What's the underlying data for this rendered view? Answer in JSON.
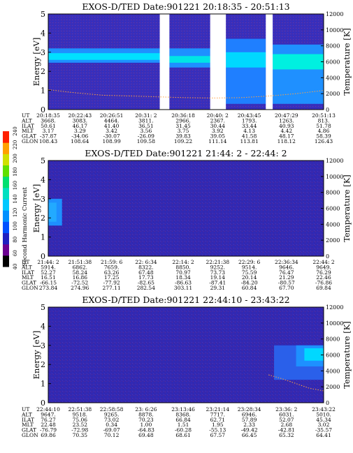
{
  "chart_data": [
    {
      "type": "heatmap",
      "title": "EXOS-D/TED   Date:901221  20:18:35 - 20:51:13",
      "ylabel": "Energy [eV]",
      "y2label": "Temperature [K]",
      "ylim": [
        0,
        5
      ],
      "yticks": [
        "0",
        "1",
        "2",
        "3",
        "4",
        "5"
      ],
      "y2lim": [
        0,
        12000
      ],
      "y2ticks": [
        "0",
        "2000",
        "4000",
        "6000",
        "8000",
        "10000",
        "12000"
      ],
      "gaps": [
        [
          0.405,
          0.44
        ],
        [
          0.588,
          0.645
        ],
        [
          0.79,
          0.815
        ]
      ],
      "bands": [
        {
          "x": [
            0.0,
            0.405
          ],
          "y": [
            2.45,
            3.2
          ],
          "color": "#1e90ff",
          "core": [
            2.6,
            2.95
          ],
          "core_color": "#00e0ff"
        },
        {
          "x": [
            0.44,
            0.588
          ],
          "y": [
            2.2,
            3.2
          ],
          "color": "#1e90ff",
          "core": [
            2.45,
            2.8
          ],
          "core_color": "#00e5e5"
        },
        {
          "x": [
            0.645,
            0.79
          ],
          "y": [
            0.3,
            3.7
          ],
          "color": "#1f7fff",
          "core": [
            2.2,
            3.0
          ],
          "core_color": "#00d8ff"
        },
        {
          "x": [
            0.815,
            1.0
          ],
          "y": [
            0.3,
            3.4
          ],
          "color": "#1f90ff",
          "core": [
            2.1,
            2.9
          ],
          "core_color": "#00f0e0"
        }
      ],
      "temperature_line": [
        [
          0.0,
          2500
        ],
        [
          0.1,
          2100
        ],
        [
          0.2,
          1800
        ],
        [
          0.3,
          1700
        ],
        [
          0.4,
          1600
        ],
        [
          0.5,
          1500
        ],
        [
          0.6,
          1450
        ],
        [
          0.7,
          1500
        ],
        [
          0.8,
          1700
        ],
        [
          0.9,
          2000
        ],
        [
          1.0,
          2400
        ]
      ],
      "orbit_labels": [
        "UT",
        "ALT",
        "ILAT",
        "MLT",
        "GLAT",
        "GLON"
      ],
      "orbit_columns": [
        [
          "20:18:35",
          "3668.",
          "50.61",
          "3.17",
          "-37.87",
          "108.43"
        ],
        [
          "20:22:43",
          "3083.",
          "46.17",
          "3.29",
          "-34.06",
          "108.64"
        ],
        [
          "20:26:51",
          "4464.",
          "41.40",
          "3.42",
          "-30.07",
          "108.99"
        ],
        [
          "20:31: 2",
          "3811.",
          "36.51",
          "3.56",
          "-26.09",
          "109.58"
        ],
        [
          "20:36:18",
          "2966.",
          "31.45",
          "3.75",
          "39.83",
          "109.22"
        ],
        [
          "20:40: 2",
          "2367.",
          "30.44",
          "3.92",
          "39.05",
          "111.14"
        ],
        [
          "20:43:45",
          "1793.",
          "33.44",
          "4.13",
          "41.58",
          "113.81"
        ],
        [
          "20:47:29",
          "1263.",
          "40.93",
          "4.42",
          "48.17",
          "118.12"
        ],
        [
          "20:51:13",
          "813.",
          "51.78",
          "4.86",
          "58.39",
          "126.43"
        ]
      ]
    },
    {
      "type": "heatmap",
      "title": "EXOS-D/TED   Date:901221  21:44: 2 - 22:44: 2",
      "ylabel": "Energy [eV]",
      "y2label": "Temperature [K]",
      "ylim": [
        0,
        5
      ],
      "yticks": [
        "0",
        "1",
        "2",
        "3",
        "4",
        "5"
      ],
      "y2lim": [
        0,
        12000
      ],
      "y2ticks": [
        "0",
        "2000",
        "4000",
        "6000",
        "8000",
        "10000",
        "12000"
      ],
      "orbit_labels": [
        "UT",
        "ALT",
        "ILAT",
        "MLT",
        "GLAT",
        "GLON"
      ],
      "orbit_columns": [
        [
          "21:44: 2",
          "5914.",
          "52.27",
          "16.51",
          "-66.15",
          "273.84"
        ],
        [
          "21:51:38",
          "6862.",
          "58.24",
          "16.86",
          "-72.52",
          "274.96"
        ],
        [
          "21:59: 6",
          "7659.",
          "63.26",
          "17.25",
          "-77.92",
          "277.11"
        ],
        [
          "22: 6:34",
          "8322.",
          "67.48",
          "17.73",
          "-82.65",
          "282.54"
        ],
        [
          "22:14: 2",
          "8850.",
          "70.97",
          "18.34",
          "-86.63",
          "303.11"
        ],
        [
          "22:21:38",
          "9252.",
          "73.73",
          "19.14",
          "-87.41",
          "29.31"
        ],
        [
          "22:29: 6",
          "9514.",
          "75.59",
          "20.14",
          "-84.20",
          "60.84"
        ],
        [
          "22:36:34",
          "9646.",
          "76.47",
          "21.29",
          "-80.57",
          "67.70"
        ],
        [
          "22:44: 2",
          "9649.",
          "76.29",
          "22.46",
          "-76.86",
          "69.84"
        ]
      ]
    },
    {
      "type": "heatmap",
      "title": "EXOS-D/TED   Date:901221  22:44:10 - 23:43:22",
      "ylabel": "Energy [eV]",
      "y2label": "Temperature [K]",
      "ylim": [
        0,
        5
      ],
      "yticks": [
        "0",
        "1",
        "2",
        "3",
        "4",
        "5"
      ],
      "y2lim": [
        0,
        12000
      ],
      "y2ticks": [
        "0",
        "2000",
        "4000",
        "6000",
        "8000",
        "10000",
        "12000"
      ],
      "temperature_line": [
        [
          0.8,
          3500
        ],
        [
          0.85,
          3000
        ],
        [
          0.9,
          2400
        ],
        [
          0.95,
          1800
        ],
        [
          1.0,
          1500
        ]
      ],
      "orbit_labels": [
        "UT",
        "ALT",
        "ILAT",
        "MLT",
        "GLAT",
        "GLON"
      ],
      "orbit_columns": [
        [
          "22:44:10",
          "9647.",
          "76.27",
          "22.48",
          "-76.79",
          "69.86"
        ],
        [
          "22:51:38",
          "9518.",
          "75.06",
          "23.52",
          "-72.98",
          "70.35"
        ],
        [
          "22:58:58",
          "9265.",
          "73.02",
          "0.34",
          "-69.07",
          "70.12"
        ],
        [
          "23: 6:26",
          "8878.",
          "70.23",
          "1.00",
          "-64.83",
          "69.48"
        ],
        [
          "23:13:46",
          "8368.",
          "66.84",
          "1.51",
          "-60.28",
          "68.61"
        ],
        [
          "23:21:14",
          "7717.",
          "62.71",
          "1.95",
          "-55.13",
          "67.57"
        ],
        [
          "23:28:34",
          "6946.",
          "57.89",
          "2.33",
          "-49.42",
          "66.45"
        ],
        [
          "23:36: 2",
          "6031.",
          "52.07",
          "2.68",
          "-42.81",
          "65.32"
        ],
        [
          "23:43:22",
          "5010.",
          "45.34",
          "3.02",
          "-35.57",
          "64.41"
        ]
      ]
    }
  ],
  "colorbar": {
    "label": "Second Harmonic Current",
    "ticks": [
      "40",
      "60",
      "80",
      "100",
      "120",
      "140",
      "160",
      "180",
      "200",
      "220",
      "240"
    ],
    "colors": [
      "#000000",
      "#6a0090",
      "#2020c0",
      "#0050ff",
      "#0090ff",
      "#00c8ff",
      "#00e0c0",
      "#00e070",
      "#60e000",
      "#d0e000",
      "#ffa000",
      "#ff2000"
    ]
  }
}
